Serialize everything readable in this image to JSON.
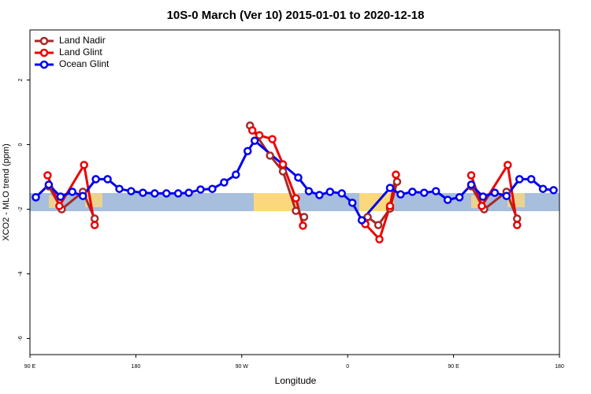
{
  "chart_data": {
    "type": "line",
    "title": "10S-0 March (Ver 10)   2015-01-01 to 2020-12-18",
    "x_label": "Longitude",
    "y_label": "XCO2 - MLO trend (ppm)",
    "xlim": [
      90,
      540
    ],
    "ylim": [
      -6.5,
      3.55
    ],
    "xticks": [
      {
        "value": 90,
        "label": "90 E"
      },
      {
        "value": 180,
        "label": "180"
      },
      {
        "value": 270,
        "label": "90 W"
      },
      {
        "value": 360,
        "label": "0"
      },
      {
        "value": 450,
        "label": "90 E"
      },
      {
        "value": 540,
        "label": "180"
      }
    ],
    "yticks": [
      2,
      0,
      -2,
      -4,
      -6
    ],
    "legend": "top-left",
    "series": [
      {
        "name": "Land Nadir",
        "color": "#a52a2a",
        "x": [
          106,
          117,
          135,
          145,
          null,
          277,
          294,
          305,
          316,
          323,
          null,
          377,
          386,
          396,
          402,
          null,
          465,
          476,
          495,
          504
        ],
        "values": [
          -1.29,
          -2.0,
          -1.46,
          -2.29,
          null,
          0.59,
          -0.34,
          -0.83,
          -2.05,
          -2.24,
          null,
          -2.24,
          -2.49,
          -1.98,
          -1.15,
          null,
          -1.29,
          -2.0,
          -1.46,
          -2.29
        ]
      },
      {
        "name": "Land Glint",
        "color": "#ee0000",
        "x": [
          105,
          115,
          136,
          145,
          null,
          279,
          285,
          296,
          305,
          316,
          322,
          null,
          375,
          387,
          396,
          401,
          null,
          465,
          474,
          496,
          504
        ],
        "values": [
          -0.95,
          -1.9,
          -0.63,
          -2.49,
          null,
          0.44,
          0.29,
          0.17,
          -0.61,
          -1.66,
          -2.51,
          null,
          -2.46,
          -2.93,
          -1.9,
          -0.93,
          null,
          -0.95,
          -1.9,
          -0.63,
          -2.49
        ]
      },
      {
        "name": "Ocean Glint",
        "color": "#0000ee",
        "x": [
          95,
          106,
          116,
          126,
          135,
          146,
          156,
          166,
          176,
          186,
          196,
          206,
          216,
          225,
          235,
          245,
          255,
          265,
          275,
          281,
          318,
          327,
          336,
          345,
          355,
          364,
          372,
          396,
          405,
          415,
          425,
          435,
          445,
          455,
          465,
          475,
          485,
          495,
          506,
          516,
          526,
          535
        ],
        "values": [
          -1.63,
          -1.24,
          -1.61,
          -1.46,
          -1.59,
          -1.07,
          -1.07,
          -1.37,
          -1.44,
          -1.49,
          -1.51,
          -1.51,
          -1.51,
          -1.49,
          -1.39,
          -1.37,
          -1.17,
          -0.93,
          -0.2,
          0.12,
          -1.02,
          -1.44,
          -1.56,
          -1.46,
          -1.51,
          -1.8,
          -2.34,
          -1.34,
          -1.54,
          -1.46,
          -1.49,
          -1.44,
          -1.71,
          -1.63,
          -1.24,
          -1.61,
          -1.49,
          -1.59,
          -1.07,
          -1.07,
          -1.37,
          -1.41
        ]
      }
    ]
  }
}
